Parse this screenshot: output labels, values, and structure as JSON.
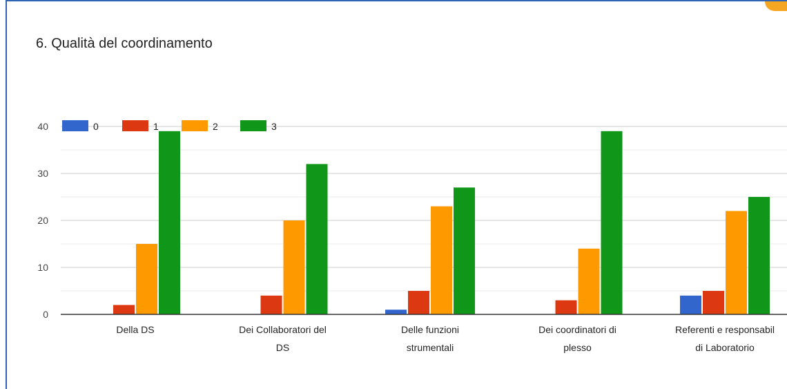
{
  "colors": {
    "accent_border": "#2f64b4",
    "accent_corner": "#f5a623"
  },
  "chart_data": {
    "type": "bar",
    "title": "6. Qualità del coordinamento",
    "xlabel": "",
    "ylabel": "",
    "ylim": [
      0,
      40
    ],
    "yticks": [
      0,
      10,
      20,
      30,
      40
    ],
    "grid": true,
    "legend_position": "top-left",
    "categories": [
      [
        "Della DS"
      ],
      [
        "Dei Collaboratori del",
        "DS"
      ],
      [
        "Delle funzioni",
        "strumentali"
      ],
      [
        "Dei coordinatori di",
        "plesso"
      ],
      [
        "Referenti e responsabil",
        "di Laboratorio"
      ]
    ],
    "series": [
      {
        "name": "0",
        "color": "#3366cc",
        "values": [
          0,
          0,
          1,
          0,
          4
        ]
      },
      {
        "name": "1",
        "color": "#dc3912",
        "values": [
          2,
          4,
          5,
          3,
          5
        ]
      },
      {
        "name": "2",
        "color": "#ff9900",
        "values": [
          15,
          20,
          23,
          14,
          22
        ]
      },
      {
        "name": "3",
        "color": "#109618",
        "values": [
          39,
          32,
          27,
          39,
          25
        ]
      }
    ]
  }
}
